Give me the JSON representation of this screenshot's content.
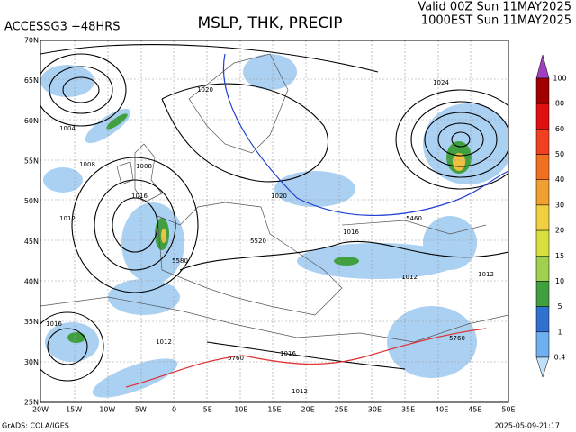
{
  "header": {
    "model": "ACCESSG3 +48HRS",
    "title": "MSLP, THK, PRECIP",
    "valid": "Valid 00Z Sun 11MAY2025",
    "local": "1000EST Sun 11MAY2025"
  },
  "map": {
    "lat_labels": [
      "70N",
      "65N",
      "60N",
      "55N",
      "50N",
      "45N",
      "40N",
      "35N",
      "30N",
      "25N"
    ],
    "lon_labels": [
      "20W",
      "15W",
      "10W",
      "5W",
      "0",
      "5E",
      "10E",
      "15E",
      "20E",
      "25E",
      "30E",
      "35E",
      "40E",
      "45E",
      "50E"
    ],
    "contour_labels": [
      "1004",
      "1008",
      "1012",
      "1016",
      "1020",
      "1024",
      "1016",
      "1012",
      "1020",
      "1012",
      "1016",
      "1008",
      "5460",
      "5520",
      "5580",
      "5760",
      "5760",
      "1012",
      "1016",
      "1012"
    ]
  },
  "colorbar": {
    "labels": [
      "100",
      "80",
      "60",
      "50",
      "40",
      "30",
      "20",
      "15",
      "10",
      "5",
      "1",
      "0.4"
    ],
    "colors": [
      "#a040c0",
      "#a00000",
      "#e01010",
      "#f04020",
      "#f07020",
      "#f0a030",
      "#f0d040",
      "#d8e040",
      "#a0d050",
      "#40a040",
      "#3070d0",
      "#70b0f0",
      "#c0e0f8"
    ]
  },
  "footer": {
    "left": "GrADS: COLA/IGES",
    "right": "2025-05-09-21:17"
  }
}
